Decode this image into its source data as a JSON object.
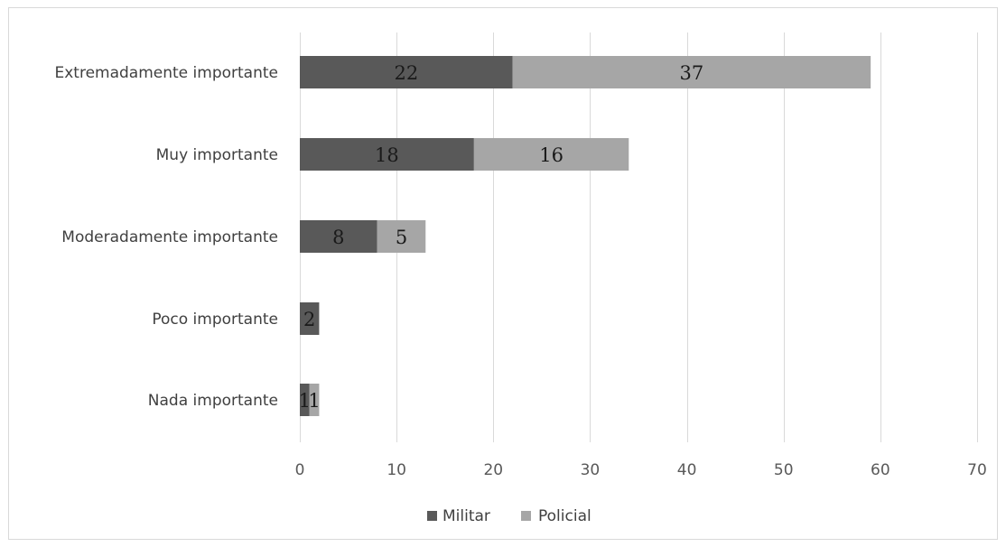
{
  "chart_data": {
    "type": "bar",
    "orientation": "horizontal",
    "stacked": true,
    "title": "",
    "xlabel": "",
    "ylabel": "",
    "categories": [
      "Extremadamente importante",
      "Muy importante",
      "Moderadamente importante",
      "Poco importante",
      "Nada importante"
    ],
    "series": [
      {
        "name": "Militar",
        "color": "#595959",
        "values": [
          22,
          18,
          8,
          2,
          1
        ]
      },
      {
        "name": "Policial",
        "color": "#a6a6a6",
        "values": [
          37,
          16,
          5,
          0,
          1
        ]
      }
    ],
    "xlim": [
      0,
      70
    ],
    "xticks": [
      0,
      10,
      20,
      30,
      40,
      50,
      60,
      70
    ],
    "grid": "vertical",
    "legend": "bottom-center",
    "data_labels": true
  }
}
